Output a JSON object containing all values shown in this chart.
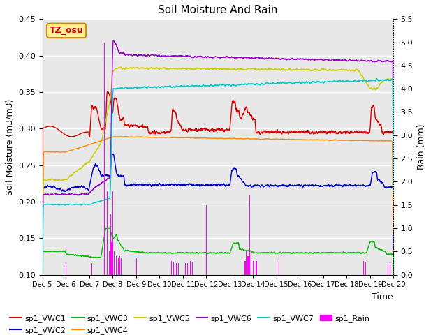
{
  "title": "Soil Moisture And Rain",
  "xlabel": "Time",
  "ylabel_left": "Soil Moisture (m3/m3)",
  "ylabel_right": "Rain (mm)",
  "ylim_left": [
    0.1,
    0.45
  ],
  "ylim_right": [
    0.0,
    5.5
  ],
  "x_tick_labels": [
    "Dec 5",
    "Dec 6",
    "Dec 7",
    "Dec 8",
    "Dec 9",
    "Dec 10",
    "Dec 11",
    "Dec 12",
    "Dec 13",
    "Dec 14",
    "Dec 15",
    "Dec 16",
    "Dec 17",
    "Dec 18",
    "Dec 19",
    "Dec 20"
  ],
  "annotation_text": "TZ_osu",
  "annotation_color": "#cc0000",
  "annotation_bg": "#ffee99",
  "annotation_edge": "#cc8800",
  "plot_bg": "#e8e8e8",
  "series_colors": {
    "VWC1": "#dd0000",
    "VWC2": "#0000cc",
    "VWC3": "#00bb00",
    "VWC4": "#ff8800",
    "VWC5": "#cccc00",
    "VWC6": "#9900cc",
    "VWC7": "#00cccc",
    "Rain": "#ff00ff"
  },
  "series_labels": {
    "VWC1": "sp1_VWC1",
    "VWC2": "sp1_VWC2",
    "VWC3": "sp1_VWC3",
    "VWC4": "sp1_VWC4",
    "VWC5": "sp1_VWC5",
    "VWC6": "sp1_VWC6",
    "VWC7": "sp1_VWC7",
    "Rain": "sp1_Rain"
  }
}
